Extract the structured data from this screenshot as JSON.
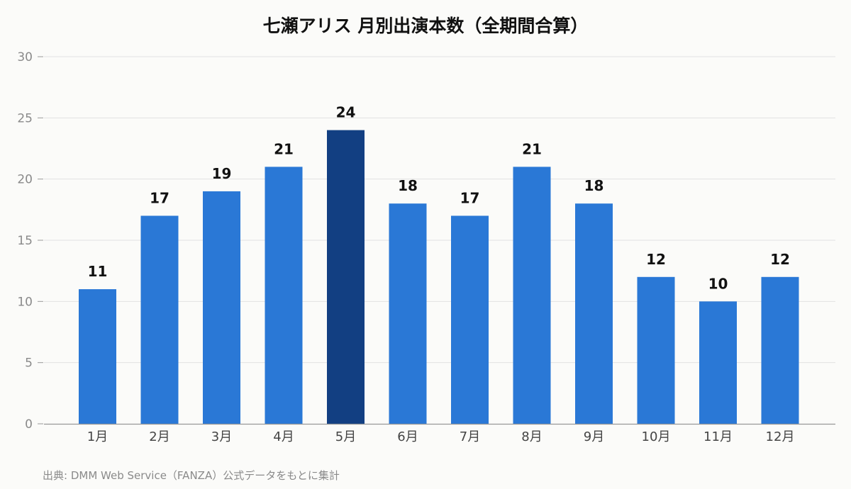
{
  "chart_data": {
    "type": "bar",
    "title": "七瀬アリス 月別出演本数（全期間合算）",
    "categories": [
      "1月",
      "2月",
      "3月",
      "4月",
      "5月",
      "6月",
      "7月",
      "8月",
      "9月",
      "10月",
      "11月",
      "12月"
    ],
    "values": [
      11,
      17,
      19,
      21,
      24,
      18,
      17,
      21,
      18,
      12,
      10,
      12
    ],
    "ylim": [
      0,
      30
    ],
    "yticks": [
      0,
      5,
      10,
      15,
      20,
      25,
      30
    ],
    "grid": true,
    "highlight_index": 4,
    "colors": {
      "bar": "#2a78d6",
      "highlight": "#123f82",
      "grid": "#e2e2e2",
      "axis": "#999999"
    }
  },
  "source_note": "出典: DMM Web Service（FANZA）公式データをもとに集計"
}
